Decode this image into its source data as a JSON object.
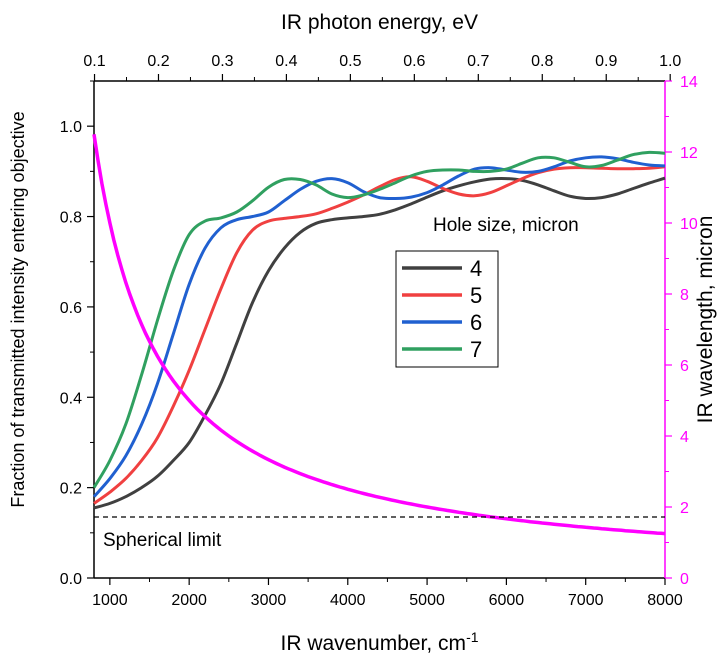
{
  "chart_data": {
    "type": "line",
    "x_axis": {
      "label": "IR wavenumber, cm",
      "label_superscript": "-1",
      "range": [
        800,
        8000
      ],
      "ticks": [
        1000,
        2000,
        3000,
        4000,
        5000,
        6000,
        7000,
        8000
      ],
      "tick_labels": [
        "1000",
        "2000",
        "3000",
        "4000",
        "5000",
        "6000",
        "7000",
        "8000"
      ]
    },
    "x_top_axis": {
      "label": "IR photon energy, eV",
      "ticks": [
        0.1,
        0.2,
        0.3,
        0.4,
        0.5,
        0.6,
        0.7,
        0.8,
        0.9,
        1.0
      ],
      "tick_labels": [
        "0.1",
        "0.2",
        "0.3",
        "0.4",
        "0.5",
        "0.6",
        "0.7",
        "0.8",
        "0.9",
        "1.0"
      ]
    },
    "y_left_axis": {
      "label": "Fraction of transmitted intensity entering objective",
      "range": [
        0.0,
        1.1
      ],
      "ticks": [
        0.0,
        0.2,
        0.4,
        0.6,
        0.8,
        1.0
      ],
      "tick_labels": [
        "0.0",
        "0.2",
        "0.4",
        "0.6",
        "0.8",
        "1.0"
      ]
    },
    "y_right_axis": {
      "label": "IR wavelength, micron",
      "range": [
        0,
        14
      ],
      "ticks": [
        0,
        2,
        4,
        6,
        8,
        10,
        12,
        14
      ],
      "tick_labels": [
        "0",
        "2",
        "4",
        "6",
        "8",
        "10",
        "12",
        "14"
      ],
      "color": "#ff00ff"
    },
    "legend": {
      "title": "Hole size, micron",
      "placement": "right-center"
    },
    "series": [
      {
        "name": "4",
        "color": "#404040",
        "axis": "left",
        "points": [
          [
            800,
            0.155
          ],
          [
            1000,
            0.165
          ],
          [
            1200,
            0.18
          ],
          [
            1400,
            0.2
          ],
          [
            1600,
            0.225
          ],
          [
            1800,
            0.26
          ],
          [
            2000,
            0.3
          ],
          [
            2200,
            0.36
          ],
          [
            2400,
            0.43
          ],
          [
            2600,
            0.52
          ],
          [
            2800,
            0.61
          ],
          [
            3000,
            0.68
          ],
          [
            3200,
            0.73
          ],
          [
            3400,
            0.765
          ],
          [
            3600,
            0.785
          ],
          [
            3800,
            0.793
          ],
          [
            4000,
            0.797
          ],
          [
            4200,
            0.8
          ],
          [
            4400,
            0.805
          ],
          [
            4600,
            0.815
          ],
          [
            4800,
            0.828
          ],
          [
            5000,
            0.843
          ],
          [
            5200,
            0.857
          ],
          [
            5400,
            0.868
          ],
          [
            5600,
            0.877
          ],
          [
            5800,
            0.883
          ],
          [
            6000,
            0.884
          ],
          [
            6200,
            0.88
          ],
          [
            6400,
            0.87
          ],
          [
            6600,
            0.857
          ],
          [
            6800,
            0.845
          ],
          [
            7000,
            0.84
          ],
          [
            7200,
            0.842
          ],
          [
            7400,
            0.85
          ],
          [
            7600,
            0.862
          ],
          [
            7800,
            0.874
          ],
          [
            8000,
            0.885
          ]
        ]
      },
      {
        "name": "5",
        "color": "#f04040",
        "axis": "left",
        "points": [
          [
            800,
            0.165
          ],
          [
            1000,
            0.19
          ],
          [
            1200,
            0.22
          ],
          [
            1400,
            0.26
          ],
          [
            1600,
            0.31
          ],
          [
            1800,
            0.38
          ],
          [
            2000,
            0.46
          ],
          [
            2200,
            0.55
          ],
          [
            2400,
            0.64
          ],
          [
            2600,
            0.72
          ],
          [
            2800,
            0.77
          ],
          [
            3000,
            0.79
          ],
          [
            3200,
            0.796
          ],
          [
            3400,
            0.8
          ],
          [
            3600,
            0.806
          ],
          [
            3800,
            0.818
          ],
          [
            4000,
            0.832
          ],
          [
            4200,
            0.848
          ],
          [
            4400,
            0.866
          ],
          [
            4600,
            0.882
          ],
          [
            4800,
            0.888
          ],
          [
            5000,
            0.878
          ],
          [
            5200,
            0.862
          ],
          [
            5400,
            0.85
          ],
          [
            5600,
            0.846
          ],
          [
            5800,
            0.853
          ],
          [
            6000,
            0.868
          ],
          [
            6200,
            0.884
          ],
          [
            6400,
            0.897
          ],
          [
            6600,
            0.905
          ],
          [
            6800,
            0.908
          ],
          [
            7000,
            0.908
          ],
          [
            7200,
            0.907
          ],
          [
            7400,
            0.906
          ],
          [
            7600,
            0.906
          ],
          [
            7800,
            0.907
          ],
          [
            8000,
            0.91
          ]
        ]
      },
      {
        "name": "6",
        "color": "#2060d0",
        "axis": "left",
        "points": [
          [
            800,
            0.18
          ],
          [
            1000,
            0.22
          ],
          [
            1200,
            0.27
          ],
          [
            1400,
            0.34
          ],
          [
            1600,
            0.43
          ],
          [
            1800,
            0.54
          ],
          [
            2000,
            0.65
          ],
          [
            2200,
            0.73
          ],
          [
            2400,
            0.775
          ],
          [
            2600,
            0.793
          ],
          [
            2800,
            0.8
          ],
          [
            3000,
            0.81
          ],
          [
            3200,
            0.835
          ],
          [
            3400,
            0.86
          ],
          [
            3600,
            0.878
          ],
          [
            3800,
            0.884
          ],
          [
            4000,
            0.875
          ],
          [
            4200,
            0.855
          ],
          [
            4400,
            0.842
          ],
          [
            4600,
            0.84
          ],
          [
            4800,
            0.843
          ],
          [
            5000,
            0.853
          ],
          [
            5200,
            0.87
          ],
          [
            5400,
            0.89
          ],
          [
            5600,
            0.905
          ],
          [
            5800,
            0.908
          ],
          [
            6000,
            0.903
          ],
          [
            6200,
            0.898
          ],
          [
            6400,
            0.9
          ],
          [
            6600,
            0.91
          ],
          [
            6800,
            0.923
          ],
          [
            7000,
            0.93
          ],
          [
            7200,
            0.932
          ],
          [
            7400,
            0.928
          ],
          [
            7600,
            0.92
          ],
          [
            7800,
            0.914
          ],
          [
            8000,
            0.912
          ]
        ]
      },
      {
        "name": "7",
        "color": "#30a060",
        "axis": "left",
        "points": [
          [
            800,
            0.2
          ],
          [
            1000,
            0.26
          ],
          [
            1200,
            0.34
          ],
          [
            1400,
            0.45
          ],
          [
            1600,
            0.57
          ],
          [
            1800,
            0.68
          ],
          [
            2000,
            0.76
          ],
          [
            2200,
            0.79
          ],
          [
            2400,
            0.797
          ],
          [
            2600,
            0.81
          ],
          [
            2800,
            0.835
          ],
          [
            3000,
            0.865
          ],
          [
            3200,
            0.882
          ],
          [
            3400,
            0.882
          ],
          [
            3600,
            0.87
          ],
          [
            3800,
            0.85
          ],
          [
            4000,
            0.842
          ],
          [
            4200,
            0.848
          ],
          [
            4400,
            0.86
          ],
          [
            4600,
            0.875
          ],
          [
            4800,
            0.89
          ],
          [
            5000,
            0.9
          ],
          [
            5200,
            0.903
          ],
          [
            5400,
            0.903
          ],
          [
            5600,
            0.9
          ],
          [
            5800,
            0.9
          ],
          [
            6000,
            0.905
          ],
          [
            6200,
            0.918
          ],
          [
            6400,
            0.93
          ],
          [
            6600,
            0.93
          ],
          [
            6800,
            0.92
          ],
          [
            7000,
            0.91
          ],
          [
            7200,
            0.913
          ],
          [
            7400,
            0.925
          ],
          [
            7600,
            0.937
          ],
          [
            7800,
            0.942
          ],
          [
            8000,
            0.94
          ]
        ]
      },
      {
        "name": "IR wavelength",
        "color": "#ff00ff",
        "axis": "right",
        "formula": "10000 / x"
      }
    ],
    "reference_line": {
      "label": "Spherical limit",
      "y": 0.135,
      "style": "dashed",
      "color": "#000000"
    }
  }
}
